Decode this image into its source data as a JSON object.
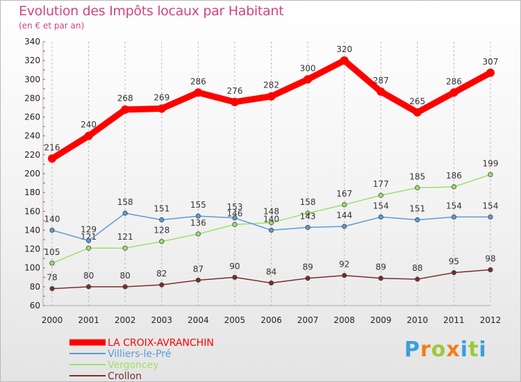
{
  "chart_data": {
    "type": "line",
    "title": "Evolution des Impôts locaux par Habitant",
    "subtitle": "(en € et par an)",
    "x": [
      "2000",
      "2001",
      "2002",
      "2003",
      "2004",
      "2005",
      "2006",
      "2007",
      "2008",
      "2009",
      "2010",
      "2011",
      "2012"
    ],
    "ylim": [
      60,
      340
    ],
    "yticks": [
      60,
      80,
      100,
      120,
      140,
      160,
      180,
      200,
      220,
      240,
      260,
      280,
      300,
      320,
      340
    ],
    "grid": "vertical dashed",
    "legend_position": "bottom-left",
    "series": [
      {
        "name": "LA CROIX-AVRANCHIN",
        "color": "#ff0000",
        "values": [
          216,
          240,
          268,
          269,
          286,
          276,
          282,
          300,
          320,
          287,
          265,
          286,
          307
        ]
      },
      {
        "name": "Villiers-le-Pré",
        "color": "#5b9bd5",
        "values": [
          140,
          129,
          158,
          151,
          155,
          153,
          140,
          143,
          144,
          154,
          151,
          154,
          154
        ]
      },
      {
        "name": "Vergoncey",
        "color": "#99e26b",
        "values": [
          105,
          121,
          121,
          128,
          136,
          146,
          148,
          158,
          167,
          177,
          185,
          186,
          199
        ]
      },
      {
        "name": "Crollon",
        "color": "#7b2c2c",
        "values": [
          78,
          80,
          80,
          82,
          87,
          90,
          84,
          89,
          92,
          89,
          88,
          95,
          98
        ]
      }
    ]
  },
  "logo": {
    "text": "Proxiti",
    "letters": [
      "P",
      "r",
      "o",
      "x",
      "i",
      "t",
      "i"
    ],
    "colors": [
      "#3aa0d8",
      "#f07f1a",
      "#9ac93b",
      "#f07f1a",
      "#3aa0d8",
      "#9ac93b",
      "#3aa0d8"
    ]
  }
}
